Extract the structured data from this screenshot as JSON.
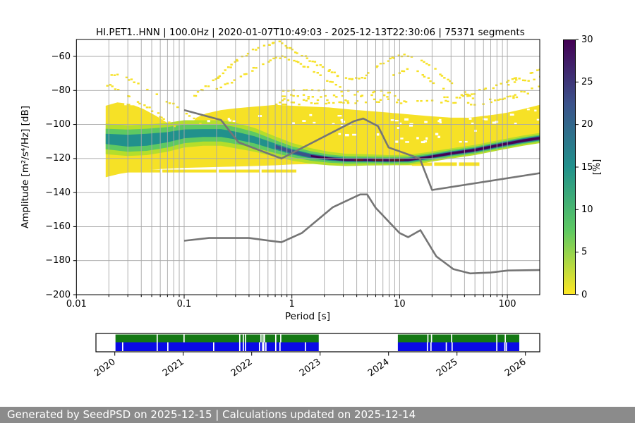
{
  "footer": {
    "text": "Generated by SeedPSD on 2025-12-15 | Calculations updated on 2025-12-14"
  },
  "chart_data": {
    "type": "heatmap",
    "title": "HI.PET1..HNN | 100.0Hz | 2020-01-07T10:49:03 - 2025-12-13T22:30:06 | 75371 segments",
    "xlabel": "Period [s]",
    "ylabel": "Amplitude [m²/s⁴/Hz] [dB]",
    "xscale": "log",
    "xlim": [
      0.01,
      199.5
    ],
    "ylim": [
      -200,
      -50
    ],
    "x_ticks": {
      "values": [
        0.01,
        0.1,
        1,
        10,
        100
      ],
      "labels": [
        "0.01",
        "0.1",
        "1",
        "10",
        "100"
      ]
    },
    "y_ticks": {
      "values": [
        -60,
        -80,
        -100,
        -120,
        -140,
        -160,
        -180,
        -200
      ],
      "labels": [
        "−60",
        "−80",
        "−100",
        "−120",
        "−140",
        "−160",
        "−180",
        "−200"
      ]
    },
    "grid": true,
    "colors": {
      "grid": "#a8a8a8",
      "frame": "#000000",
      "noise_line": "#757575",
      "yellow": "#f6e126",
      "overflow": "#5e1224"
    },
    "colorbar": {
      "label": "[%]",
      "min": 0,
      "max": 30,
      "ticks": {
        "values": [
          0,
          5,
          10,
          15,
          20,
          25,
          30
        ],
        "labels": [
          "0",
          "5",
          "10",
          "15",
          "20",
          "25",
          "30"
        ]
      },
      "stops": [
        {
          "at": 0,
          "c": "#fde725"
        },
        {
          "at": 0.25,
          "c": "#5ec962"
        },
        {
          "at": 0.5,
          "c": "#21918c"
        },
        {
          "at": 0.75,
          "c": "#3b528b"
        },
        {
          "at": 1,
          "c": "#440154"
        }
      ]
    },
    "noise_models": {
      "nhnm": [
        [
          0.1,
          -91.5
        ],
        [
          0.22,
          -97.4
        ],
        [
          0.32,
          -110.5
        ],
        [
          0.8,
          -120.0
        ],
        [
          3.8,
          -98.0
        ],
        [
          4.6,
          -96.5
        ],
        [
          6.3,
          -101.0
        ],
        [
          7.9,
          -113.5
        ],
        [
          15.4,
          -120.0
        ],
        [
          20.0,
          -138.5
        ],
        [
          199.5,
          -128.6
        ]
      ],
      "nlnm": [
        [
          0.1,
          -168.3
        ],
        [
          0.17,
          -166.7
        ],
        [
          0.4,
          -166.7
        ],
        [
          0.8,
          -169.2
        ],
        [
          1.24,
          -163.7
        ],
        [
          2.4,
          -148.6
        ],
        [
          4.3,
          -141.1
        ],
        [
          5.0,
          -141.1
        ],
        [
          6.0,
          -149.0
        ],
        [
          10.0,
          -163.8
        ],
        [
          12.0,
          -166.2
        ],
        [
          15.6,
          -162.1
        ],
        [
          21.9,
          -177.5
        ],
        [
          31.6,
          -185.0
        ],
        [
          45.0,
          -187.5
        ],
        [
          70.0,
          -187.0
        ],
        [
          101.0,
          -185.8
        ],
        [
          199.5,
          -185.5
        ]
      ]
    },
    "heatmap": {
      "p_min": 0.0187,
      "top_edge": [
        [
          0.0187,
          -89
        ],
        [
          0.024,
          -87
        ],
        [
          0.032,
          -88
        ],
        [
          0.042,
          -91
        ],
        [
          0.055,
          -95
        ],
        [
          0.07,
          -99
        ],
        [
          0.085,
          -102
        ],
        [
          0.1,
          -103
        ],
        [
          0.115,
          -100
        ],
        [
          0.13,
          -96
        ],
        [
          0.16,
          -93.5
        ],
        [
          0.22,
          -91.5
        ],
        [
          0.3,
          -90.5
        ],
        [
          0.45,
          -89.5
        ],
        [
          0.7,
          -88.5
        ],
        [
          1,
          -89
        ],
        [
          1.5,
          -89.5
        ],
        [
          2.2,
          -90
        ],
        [
          3.2,
          -91
        ],
        [
          5,
          -92
        ],
        [
          8,
          -93
        ],
        [
          12,
          -94
        ],
        [
          18,
          -95
        ],
        [
          30,
          -96
        ],
        [
          45,
          -96
        ],
        [
          60,
          -95
        ],
        [
          80,
          -94
        ],
        [
          100,
          -93
        ],
        [
          140,
          -91
        ],
        [
          199.5,
          -88.5
        ]
      ],
      "bottom_edge": [
        [
          0.0187,
          -131
        ],
        [
          0.025,
          -129
        ],
        [
          0.035,
          -127.5
        ],
        [
          0.05,
          -126.5
        ],
        [
          0.1,
          -125.5
        ],
        [
          0.2,
          -125
        ],
        [
          0.4,
          -124.5
        ],
        [
          0.7,
          -124
        ],
        [
          1,
          -123.5
        ],
        [
          2,
          -123
        ],
        [
          4,
          -123.2
        ],
        [
          7,
          -123.5
        ],
        [
          10,
          -124
        ],
        [
          13,
          -124
        ],
        [
          16,
          -122.5
        ],
        [
          22,
          -120.5
        ],
        [
          30,
          -119
        ],
        [
          50,
          -116.5
        ],
        [
          90,
          -113.5
        ],
        [
          140,
          -111.5
        ],
        [
          199.5,
          -110
        ]
      ],
      "mode_p": [
        0.0187,
        0.03,
        0.045,
        0.07,
        0.1,
        0.15,
        0.22,
        0.3,
        0.45,
        0.7,
        1.0,
        1.5,
        2.2,
        3.2,
        5,
        8,
        12,
        18,
        30,
        50,
        90,
        140,
        199.5
      ],
      "mode_db": [
        -108.5,
        -109.5,
        -109,
        -107.5,
        -105.5,
        -105,
        -105,
        -106.5,
        -109,
        -113,
        -116,
        -118.5,
        -120,
        -120.8,
        -120.8,
        -121,
        -120.8,
        -119.3,
        -117,
        -115,
        -111.8,
        -109.5,
        -108
      ],
      "layers": [
        {
          "color": "#b5de2b",
          "start": 0,
          "w": [
            9,
            9,
            9,
            8.5,
            8,
            7.5,
            7.5,
            7.5,
            7,
            6,
            5.2,
            4.6,
            4,
            3.6,
            3.3,
            3,
            3,
            3,
            3,
            3,
            3,
            3,
            3
          ]
        },
        {
          "color": "#5ec962",
          "start": 0,
          "w": [
            6,
            6.5,
            6.5,
            6,
            5.5,
            5,
            5,
            5,
            4.6,
            3.8,
            3.2,
            2.8,
            2.4,
            2.2,
            2,
            2,
            2,
            2,
            2,
            2,
            2,
            2,
            2
          ]
        },
        {
          "color": "#21918c",
          "start": 0,
          "w": [
            3,
            3.5,
            3.5,
            3,
            2.6,
            2.3,
            2.3,
            2.3,
            2.1,
            1.8,
            1.6,
            1.4,
            1.3,
            1.25,
            1.2,
            1.2,
            1.2,
            1.2,
            1.25,
            1.3,
            1.4,
            1.4,
            1.4
          ]
        },
        {
          "color": "#3b528b",
          "start": 9,
          "w": [
            1.0,
            1.0,
            0.95,
            0.9,
            0.85,
            0.85,
            0.85,
            0.85,
            0.85,
            0.9,
            1.0,
            1.0,
            1.0,
            1.0
          ]
        },
        {
          "color": "#440154",
          "start": 11,
          "w": [
            0.55,
            0.6,
            0.62,
            0.62,
            0.65,
            0.65,
            0.65,
            0.68,
            0.7,
            0.72,
            0.72,
            0.75
          ]
        }
      ],
      "overflow_dashes": {
        "ranges": [
          [
            3.8,
            4.6
          ],
          [
            5.6,
            7.0
          ],
          [
            8,
            11
          ]
        ],
        "halfw": 0.6
      },
      "strips": [
        {
          "p": [
            0.024,
            1.1
          ],
          "db": [
            -126.5,
            -128.2
          ],
          "gaps": [
            0.06,
            0.2,
            0.5
          ]
        },
        {
          "p": [
            13,
            55
          ],
          "db": [
            -122.3,
            -124.3
          ],
          "gaps": [
            20,
            34
          ]
        }
      ],
      "hole_zones": [
        {
          "p": [
            2.5,
            50
          ],
          "db": [
            -95,
            -110
          ],
          "n": 26
        },
        {
          "p": [
            8,
            199
          ],
          "db": [
            -88,
            -99
          ],
          "n": 34
        },
        {
          "p": [
            0.8,
            3
          ],
          "db": [
            -92,
            -100
          ],
          "n": 8
        },
        {
          "p": [
            0.15,
            0.6
          ],
          "db": [
            -93,
            -99
          ],
          "n": 5
        },
        {
          "p": [
            0.024,
            0.032
          ],
          "db": [
            -86,
            -90
          ],
          "n": 4
        }
      ],
      "speckle_arcs": [
        {
          "pts": [
            [
              0.0187,
              -76
            ],
            [
              0.03,
              -83
            ],
            [
              0.05,
              -91
            ],
            [
              0.075,
              -100
            ],
            [
              0.085,
              -103
            ]
          ],
          "d": 0.6
        },
        {
          "pts": [
            [
              0.028,
              -72
            ],
            [
              0.05,
              -80
            ],
            [
              0.08,
              -88
            ],
            [
              0.12,
              -96
            ],
            [
              0.14,
              -99
            ]
          ],
          "d": 0.45
        },
        {
          "pts": [
            [
              0.12,
              -83
            ],
            [
              0.2,
              -72
            ],
            [
              0.3,
              -62
            ],
            [
              0.45,
              -55
            ],
            [
              0.6,
              -52
            ],
            [
              0.75,
              -51.5
            ],
            [
              0.95,
              -55
            ],
            [
              1.3,
              -60
            ],
            [
              1.8,
              -65
            ],
            [
              2.6,
              -70.5
            ],
            [
              3.6,
              -73
            ],
            [
              4.6,
              -72.5
            ]
          ],
          "d": 0.75
        },
        {
          "pts": [
            [
              0.2,
              -79
            ],
            [
              0.35,
              -70
            ],
            [
              0.55,
              -63
            ],
            [
              0.8,
              -60
            ],
            [
              1.1,
              -63
            ],
            [
              1.6,
              -69
            ],
            [
              2.4,
              -76
            ],
            [
              3.2,
              -80
            ]
          ],
          "d": 0.5
        },
        {
          "pts": [
            [
              4.8,
              -71
            ],
            [
              6.5,
              -64
            ],
            [
              8.5,
              -60
            ],
            [
              11,
              -58.5
            ],
            [
              14,
              -60
            ],
            [
              18,
              -64
            ],
            [
              23,
              -70
            ],
            [
              30,
              -76
            ],
            [
              40,
              -81
            ],
            [
              50,
              -84.5
            ]
          ],
          "d": 0.7
        },
        {
          "pts": [
            [
              6,
              -76
            ],
            [
              8.5,
              -70
            ],
            [
              11.5,
              -67
            ],
            [
              15,
              -69
            ],
            [
              20,
              -75
            ],
            [
              26,
              -80
            ]
          ],
          "d": 0.45
        },
        {
          "pts": [
            [
              28,
              -85
            ],
            [
              60,
              -79
            ],
            [
              120,
              -72.5
            ],
            [
              199,
              -66.5
            ]
          ],
          "d": 0.6
        },
        {
          "pts": [
            [
              45,
              -88.5
            ],
            [
              90,
              -84
            ],
            [
              150,
              -80
            ],
            [
              199,
              -77
            ]
          ],
          "d": 0.5
        },
        {
          "pts": [
            [
              0.8,
              -80
            ],
            [
              8,
              -80
            ]
          ],
          "d": 0.4
        },
        {
          "pts": [
            [
              0.8,
              -82.5
            ],
            [
              9,
              -82.5
            ]
          ],
          "d": 0.45
        },
        {
          "pts": [
            [
              0.7,
              -85
            ],
            [
              10,
              -85
            ]
          ],
          "d": 0.5
        },
        {
          "pts": [
            [
              0.7,
              -87
            ],
            [
              12,
              -87
            ]
          ],
          "d": 0.55
        },
        {
          "pts": [
            [
              10,
              -86
            ],
            [
              45,
              -86
            ]
          ],
          "d": 0.4
        },
        {
          "pts": [
            [
              60,
              -86
            ],
            [
              120,
              -83
            ],
            [
              199,
              -80.5
            ]
          ],
          "d": 0.5
        },
        {
          "pts": [
            [
              100,
              -76
            ],
            [
              199,
              -71.5
            ]
          ],
          "d": 0.5
        },
        {
          "pts": [
            [
              20,
              -83
            ],
            [
              45,
              -83.5
            ]
          ],
          "d": 0.35
        },
        {
          "pts": [
            [
              0.019,
              -71
            ],
            [
              0.028,
              -70
            ]
          ],
          "d": 0.4
        }
      ]
    }
  },
  "timeline": {
    "years": [
      "2020",
      "2021",
      "2022",
      "2023",
      "2024",
      "2025",
      "2026"
    ],
    "colors": {
      "green": "#147814",
      "blue": "#0a0ae6"
    },
    "rows": [
      {
        "name": "coverage-green",
        "blocks": [
          {
            "s": 2020.01,
            "e": 2022.98,
            "gaps": [
              2020.611,
              2021.003,
              2021.817,
              2021.869,
              2021.9,
              2022.127,
              2022.158,
              2022.178,
              2022.343,
              2022.416
            ]
          },
          {
            "s": 2024.136,
            "e": 2025.91,
            "gaps": [
              2024.566,
              2024.619,
              2024.913,
              2025.573,
              2025.697
            ]
          }
        ]
      },
      {
        "name": "coverage-blue",
        "blocks": [
          {
            "s": 2020.01,
            "e": 2022.98,
            "gaps": [
              2020.106,
              2020.611,
              2020.766,
              2021.436,
              2021.817,
              2021.869,
              2021.9,
              2022.106,
              2022.147,
              2022.168,
              2022.199,
              2022.343,
              2022.405,
              2022.776
            ]
          },
          {
            "s": 2024.136,
            "e": 2025.91,
            "gaps": [
              2024.559,
              2024.611,
              2024.835,
              2024.92,
              2025.573,
              2025.69,
              2025.712
            ]
          }
        ]
      }
    ]
  }
}
